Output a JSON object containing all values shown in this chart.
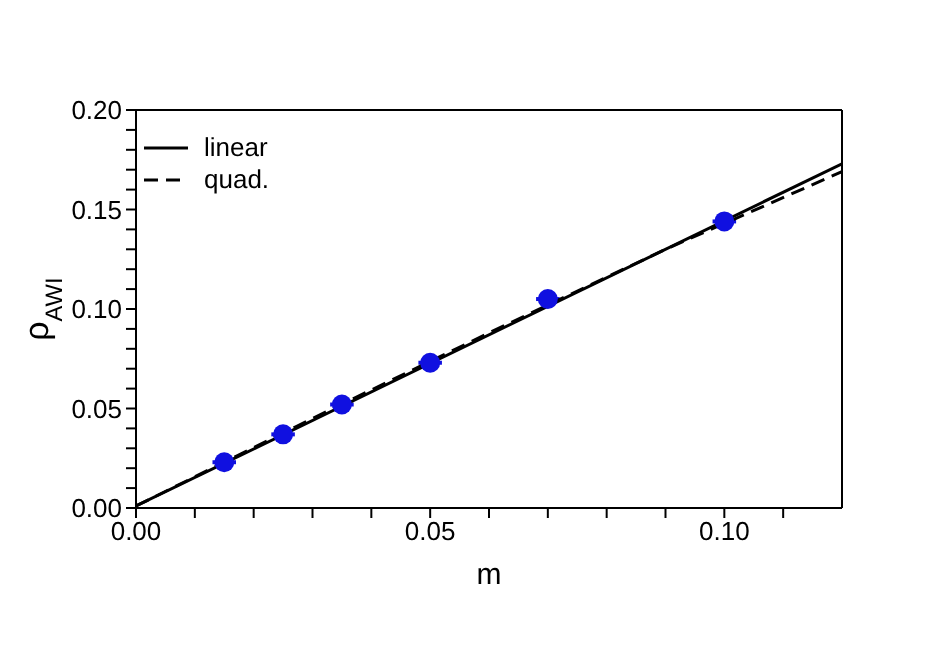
{
  "chart_data": {
    "type": "scatter",
    "xlabel": "m",
    "ylabel": "ρ$_{AWI}$",
    "xlim": [
      0,
      0.12
    ],
    "ylim": [
      0,
      0.2
    ],
    "xticks": [
      {
        "value": 0,
        "label": "0.00"
      },
      {
        "value": 0.01,
        "label": null
      },
      {
        "value": 0.02,
        "label": null
      },
      {
        "value": 0.03,
        "label": null
      },
      {
        "value": 0.04,
        "label": null
      },
      {
        "value": 0.05,
        "label": "0.05"
      },
      {
        "value": 0.06,
        "label": null
      },
      {
        "value": 0.07,
        "label": null
      },
      {
        "value": 0.08,
        "label": null
      },
      {
        "value": 0.09,
        "label": null
      },
      {
        "value": 0.1,
        "label": "0.10"
      },
      {
        "value": 0.11,
        "label": null
      }
    ],
    "yticks": [
      {
        "value": 0,
        "label": "0.00"
      },
      {
        "value": 0.01,
        "label": null
      },
      {
        "value": 0.02,
        "label": null
      },
      {
        "value": 0.03,
        "label": null
      },
      {
        "value": 0.04,
        "label": null
      },
      {
        "value": 0.05,
        "label": "0.05"
      },
      {
        "value": 0.06,
        "label": null
      },
      {
        "value": 0.07,
        "label": null
      },
      {
        "value": 0.08,
        "label": null
      },
      {
        "value": 0.09,
        "label": null
      },
      {
        "value": 0.1,
        "label": "0.10"
      },
      {
        "value": 0.11,
        "label": null
      },
      {
        "value": 0.12,
        "label": null
      },
      {
        "value": 0.13,
        "label": null
      },
      {
        "value": 0.14,
        "label": null
      },
      {
        "value": 0.15,
        "label": "0.15"
      },
      {
        "value": 0.16,
        "label": null
      },
      {
        "value": 0.17,
        "label": null
      },
      {
        "value": 0.18,
        "label": null
      },
      {
        "value": 0.19,
        "label": null
      },
      {
        "value": 0.2,
        "label": "0.20"
      }
    ],
    "legend": "top left",
    "series": [
      {
        "color": "#1010e0",
        "marker": "circle",
        "x": [
          0.015,
          0.025,
          0.035,
          0.05,
          0.07,
          0.1
        ],
        "values": [
          0.023,
          0.037,
          0.052,
          0.073,
          0.105,
          0.144
        ],
        "xerrors": [
          0.002,
          0.002,
          0.002,
          0.002,
          0.002,
          0.002
        ]
      },
      {
        "type": "line",
        "name": "linear",
        "color": "#000000",
        "line_style": "solid",
        "marker": "none",
        "x": [
          0,
          0.12
        ],
        "values": [
          0.001,
          0.173
        ]
      },
      {
        "type": "line",
        "name": "quad.",
        "color": "#000000",
        "line_style": "dashed",
        "marker": "none",
        "x": [
          0,
          0.03,
          0.06,
          0.09,
          0.12
        ],
        "values": [
          0.001,
          0.045,
          0.088,
          0.13,
          0.169
        ]
      }
    ]
  }
}
